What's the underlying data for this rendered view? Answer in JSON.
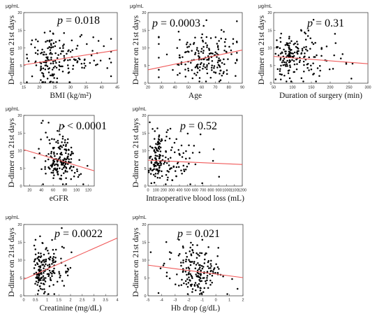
{
  "figure": {
    "ylabel": "D-dimer on 21st days",
    "yunit": "μg/mL",
    "p_symbol": "p",
    "line_color": "#f05a5a",
    "point_color": "#000000"
  },
  "chart_data": [
    {
      "type": "scatter",
      "id": "bmi",
      "xlabel": "BMI (kg/m²)",
      "p_text": " = 0.018",
      "xlim": [
        15,
        45
      ],
      "xticks": [
        15,
        20,
        25,
        30,
        35,
        40,
        45
      ],
      "ylim": [
        0,
        20
      ],
      "yticks": [
        0,
        5,
        10,
        15,
        20
      ],
      "trend": {
        "x": [
          15,
          45
        ],
        "y": [
          5.2,
          9.4
        ]
      },
      "cluster": {
        "n": 180,
        "x_center": 24.5,
        "x_spread": 3.5,
        "x_skew": 0.6,
        "x_min": 16,
        "x_max": 43,
        "y_center": 6.5,
        "y_spread": 3.0,
        "y_min": 0.3,
        "y_max": 19.5
      }
    },
    {
      "type": "scatter",
      "id": "age",
      "xlabel": "Age",
      "p_text": " = 0.0003",
      "xlim": [
        20,
        90
      ],
      "xticks": [
        20,
        30,
        40,
        50,
        60,
        70,
        80,
        90
      ],
      "ylim": [
        0,
        20
      ],
      "yticks": [
        0,
        5,
        10,
        15,
        20
      ],
      "trend": {
        "x": [
          20,
          90
        ],
        "y": [
          3.8,
          9.4
        ]
      },
      "cluster": {
        "n": 180,
        "x_center": 65,
        "x_spread": 11,
        "x_skew": -0.4,
        "x_min": 28,
        "x_max": 86,
        "y_center": 6.8,
        "y_spread": 3.0,
        "y_min": 0.5,
        "y_max": 19.0
      }
    },
    {
      "type": "scatter",
      "id": "surgery",
      "xlabel": "Duration of surgery (min)",
      "p_text": " = 0.31",
      "xlim": [
        50,
        300
      ],
      "xticks": [
        50,
        100,
        150,
        200,
        250,
        300
      ],
      "ylim": [
        0,
        20
      ],
      "yticks": [
        0,
        5,
        10,
        15,
        20
      ],
      "trend": {
        "x": [
          50,
          300
        ],
        "y": [
          7.6,
          5.5
        ]
      },
      "cluster": {
        "n": 180,
        "x_center": 95,
        "x_spread": 20,
        "x_skew": 1.2,
        "x_min": 55,
        "x_max": 280,
        "y_center": 6.8,
        "y_spread": 3.0,
        "y_min": 0.5,
        "y_max": 19.0
      }
    },
    {
      "type": "scatter",
      "id": "egfr",
      "xlabel": "eGFR",
      "p_text": " < 0.0001",
      "xlim": [
        10,
        130
      ],
      "xticks": [
        20,
        40,
        60,
        80,
        100,
        120
      ],
      "ylim": [
        0,
        20
      ],
      "yticks": [
        0,
        5,
        10,
        15,
        20
      ],
      "trend": {
        "x": [
          10,
          130
        ],
        "y": [
          10.3,
          4.3
        ]
      },
      "cluster": {
        "n": 180,
        "x_center": 72,
        "x_spread": 16,
        "x_skew": 0.0,
        "x_min": 15,
        "x_max": 125,
        "y_center": 6.8,
        "y_spread": 3.0,
        "y_min": 0.5,
        "y_max": 19.0
      }
    },
    {
      "type": "scatter",
      "id": "bloodloss",
      "xlabel": "Intraoperative blood loss (mL)",
      "p_text": " = 0.52",
      "xlim": [
        0,
        1200
      ],
      "xticks": [
        0,
        100,
        200,
        300,
        400,
        500,
        600,
        700,
        800,
        900,
        1000,
        1100,
        1200
      ],
      "ylim": [
        0,
        20
      ],
      "yticks": [
        0,
        5,
        10,
        15,
        20
      ],
      "trend": {
        "x": [
          0,
          1200
        ],
        "y": [
          7.3,
          6.1
        ]
      },
      "cluster": {
        "n": 180,
        "x_center": 160,
        "x_spread": 70,
        "x_skew": 1.5,
        "x_min": 10,
        "x_max": 1130,
        "y_center": 6.8,
        "y_spread": 3.0,
        "y_min": 0.5,
        "y_max": 19.5
      }
    },
    {
      "type": "scatter",
      "id": "creatinine",
      "xlabel": "Creatinine (mg/dL)",
      "p_text": " = 0.0022",
      "xlim": [
        0,
        4
      ],
      "xticks": [
        0,
        0.5,
        1,
        1.5,
        2,
        2.5,
        3,
        3.5,
        4
      ],
      "ylim": [
        0,
        20
      ],
      "yticks": [
        0,
        5,
        10,
        15,
        20
      ],
      "trend": {
        "x": [
          0,
          4
        ],
        "y": [
          4.6,
          16.2
        ]
      },
      "cluster": {
        "n": 180,
        "x_center": 0.75,
        "x_spread": 0.15,
        "x_skew": 1.4,
        "x_min": 0.45,
        "x_max": 3.6,
        "y_center": 6.8,
        "y_spread": 3.0,
        "y_min": 0.5,
        "y_max": 19.0
      }
    },
    {
      "type": "scatter",
      "id": "hb",
      "xlabel": "Hb drop (g/dL)",
      "p_text": " = 0.021",
      "xlim": [
        -5,
        2
      ],
      "xticks": [
        -5,
        -4,
        -3,
        -2,
        -1,
        0,
        1,
        2
      ],
      "ylim": [
        0,
        20
      ],
      "yticks": [
        0,
        5,
        10,
        15,
        20
      ],
      "trend": {
        "x": [
          -5,
          2
        ],
        "y": [
          8.6,
          5.1
        ]
      },
      "cluster": {
        "n": 180,
        "x_center": -1.5,
        "x_spread": 1.0,
        "x_skew": 0.0,
        "x_min": -4.8,
        "x_max": 1.6,
        "y_center": 6.8,
        "y_spread": 3.0,
        "y_min": 0.5,
        "y_max": 19.0
      }
    }
  ]
}
